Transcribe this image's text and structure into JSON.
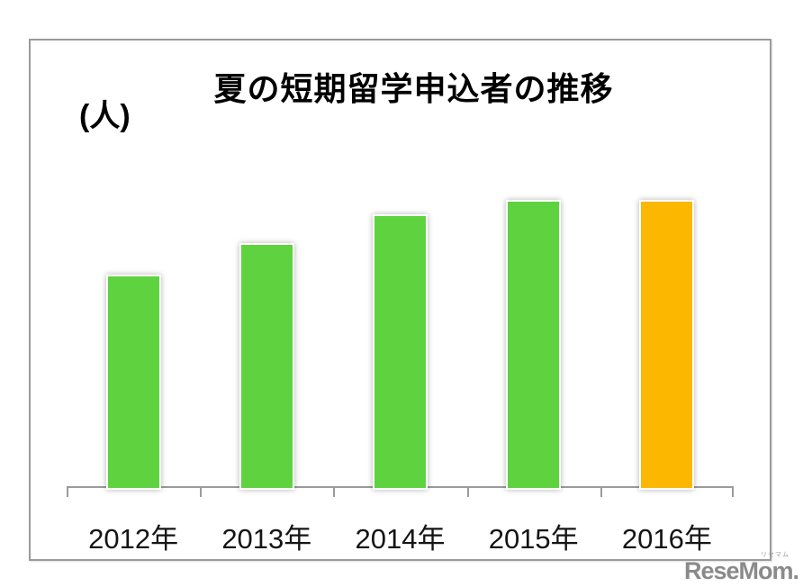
{
  "chart_data": {
    "type": "bar",
    "title": "夏の短期留学申込者の推移",
    "ylabel": "(人)",
    "xlabel": "",
    "categories": [
      "2012年",
      "2013年",
      "2014年",
      "2015年",
      "2016年"
    ],
    "values": [
      74,
      85,
      95,
      100,
      100
    ],
    "value_note": "value axis shows no numeric tick labels; values are relative bar heights estimated in percent of the 2015 bar (=100)",
    "bar_colors": [
      "#5ed33f",
      "#5ed33f",
      "#5ed33f",
      "#5ed33f",
      "#fcb700"
    ],
    "grid": false,
    "legend": "none",
    "highlighted_category": "2016年"
  },
  "colors": {
    "green_bar": "#5ed33f",
    "orange_bar": "#fcb700",
    "axis": "#9b9b9b",
    "box_border": "#9b9b9b",
    "title_text": "#000000",
    "watermark": "#8a8a8a"
  },
  "watermark": {
    "text": "ReseMom.",
    "ruby": "リセマム"
  }
}
